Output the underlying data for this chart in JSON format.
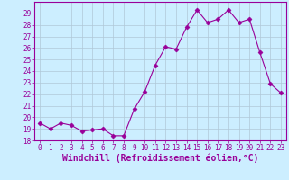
{
  "x": [
    0,
    1,
    2,
    3,
    4,
    5,
    6,
    7,
    8,
    9,
    10,
    11,
    12,
    13,
    14,
    15,
    16,
    17,
    18,
    19,
    20,
    21,
    22,
    23
  ],
  "y": [
    19.5,
    19.0,
    19.5,
    19.3,
    18.8,
    18.9,
    19.0,
    18.4,
    18.4,
    20.7,
    22.2,
    24.5,
    26.1,
    25.9,
    27.8,
    29.3,
    28.2,
    28.5,
    29.3,
    28.2,
    28.5,
    25.6,
    22.9,
    22.1
  ],
  "line_color": "#990099",
  "marker": "D",
  "marker_size": 2.5,
  "bg_color": "#cceeff",
  "grid_color": "#b0c8d8",
  "xlabel": "Windchill (Refroidissement éolien,°C)",
  "ylim": [
    18,
    30
  ],
  "xlim": [
    -0.5,
    23.5
  ],
  "yticks": [
    18,
    19,
    20,
    21,
    22,
    23,
    24,
    25,
    26,
    27,
    28,
    29
  ],
  "xticks": [
    0,
    1,
    2,
    3,
    4,
    5,
    6,
    7,
    8,
    9,
    10,
    11,
    12,
    13,
    14,
    15,
    16,
    17,
    18,
    19,
    20,
    21,
    22,
    23
  ],
  "tick_fontsize": 5.5,
  "xlabel_fontsize": 7.0,
  "xlabel_bold": true
}
